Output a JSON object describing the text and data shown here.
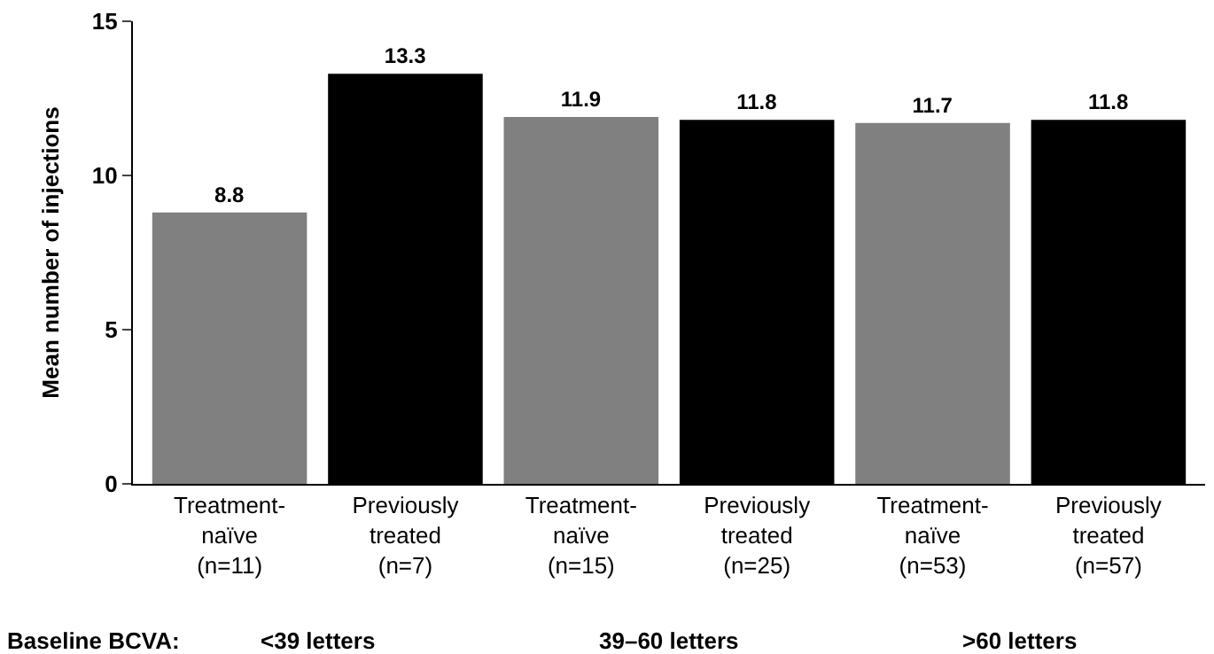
{
  "chart_data": {
    "type": "bar",
    "ylabel": "Mean number of injections",
    "categories": [
      "Treatment-\nnaïve\n(n=11)",
      "Previously\ntreated\n(n=7)",
      "Treatment-\nnaïve\n(n=15)",
      "Previously\ntreated\n(n=25)",
      "Treatment-\nnaïve\n(n=53)",
      "Previously\ntreated\n(n=57)"
    ],
    "values": [
      8.8,
      13.3,
      11.9,
      11.8,
      11.7,
      11.8
    ],
    "colors": [
      "#808080",
      "#000000",
      "#808080",
      "#000000",
      "#808080",
      "#000000"
    ],
    "ylim": [
      0,
      15
    ],
    "yticks": [
      0,
      5,
      10,
      15
    ],
    "data_labels": true,
    "annotations": [
      "Baseline BCVA:",
      "<39 letters",
      "39–60 letters",
      ">60 letters"
    ]
  }
}
